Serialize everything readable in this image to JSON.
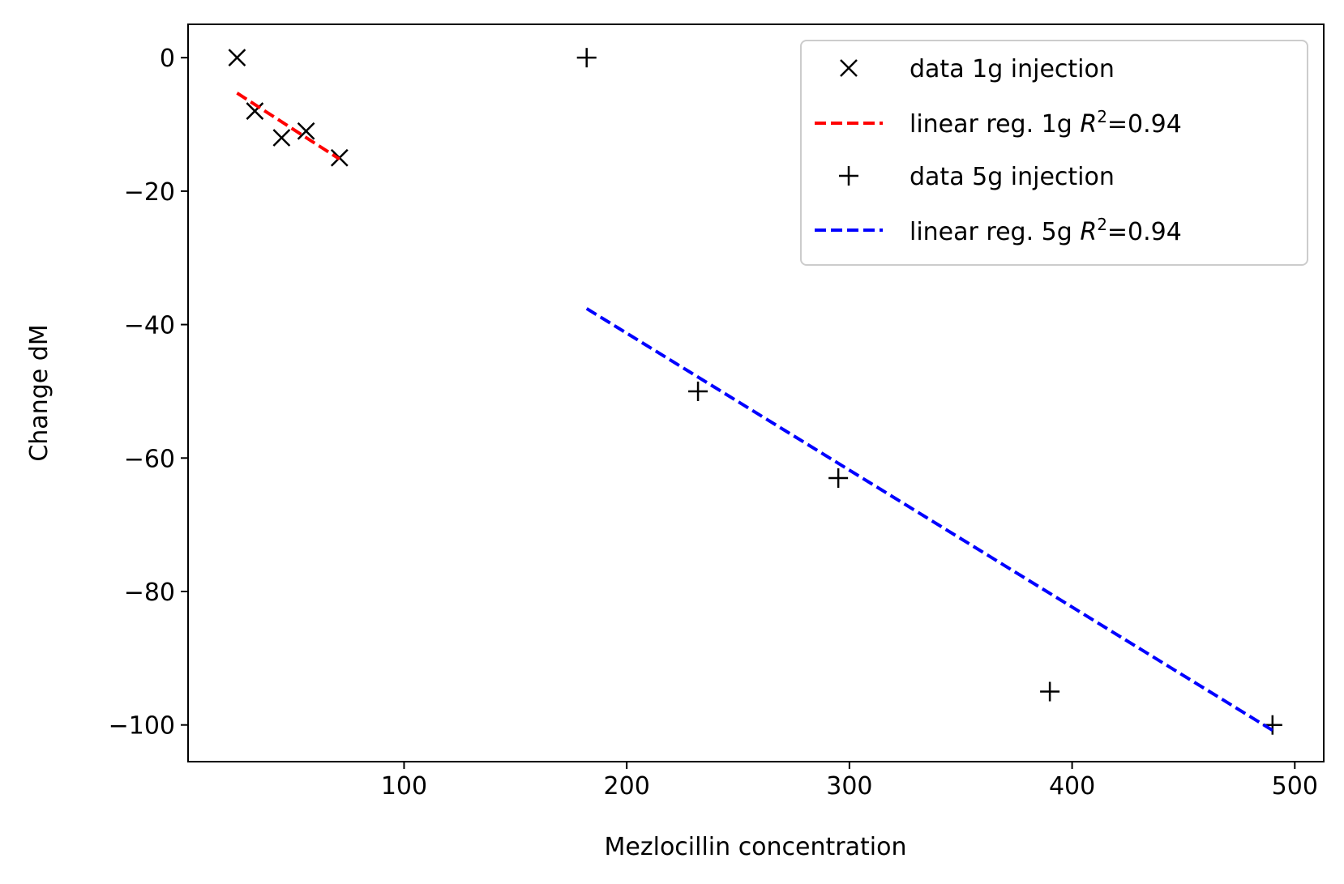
{
  "chart_data": {
    "type": "scatter",
    "title": "",
    "xlabel": "Mezlocillin concentration",
    "ylabel": "Change dM",
    "xlim": [
      3,
      513
    ],
    "ylim": [
      -105.5,
      5
    ],
    "xticks": [
      100,
      200,
      300,
      400,
      500
    ],
    "yticks": [
      0,
      -20,
      -40,
      -60,
      -80,
      -100
    ],
    "grid": false,
    "legend_position": "top-right",
    "series": [
      {
        "name": "data 1g injection",
        "kind": "points",
        "marker": "x",
        "color": "#000000",
        "points": [
          [
            25,
            0
          ],
          [
            33,
            -8
          ],
          [
            45,
            -12
          ],
          [
            56,
            -11
          ],
          [
            71,
            -15
          ]
        ]
      },
      {
        "name": "linear reg. 1g",
        "r2_label": "=0.94",
        "kind": "line",
        "style": "dashed",
        "color": "#ff0000",
        "points": [
          [
            25,
            -5.3
          ],
          [
            71,
            -15.2
          ]
        ]
      },
      {
        "name": "data 5g injection",
        "kind": "points",
        "marker": "+",
        "color": "#000000",
        "points": [
          [
            182,
            0
          ],
          [
            232,
            -50
          ],
          [
            295,
            -63
          ],
          [
            390,
            -95
          ],
          [
            490,
            -100
          ]
        ]
      },
      {
        "name": "linear reg. 5g",
        "r2_label": "=0.94",
        "kind": "line",
        "style": "dashed",
        "color": "#0000ff",
        "points": [
          [
            182,
            -37.6
          ],
          [
            490,
            -100.8
          ]
        ]
      }
    ]
  }
}
